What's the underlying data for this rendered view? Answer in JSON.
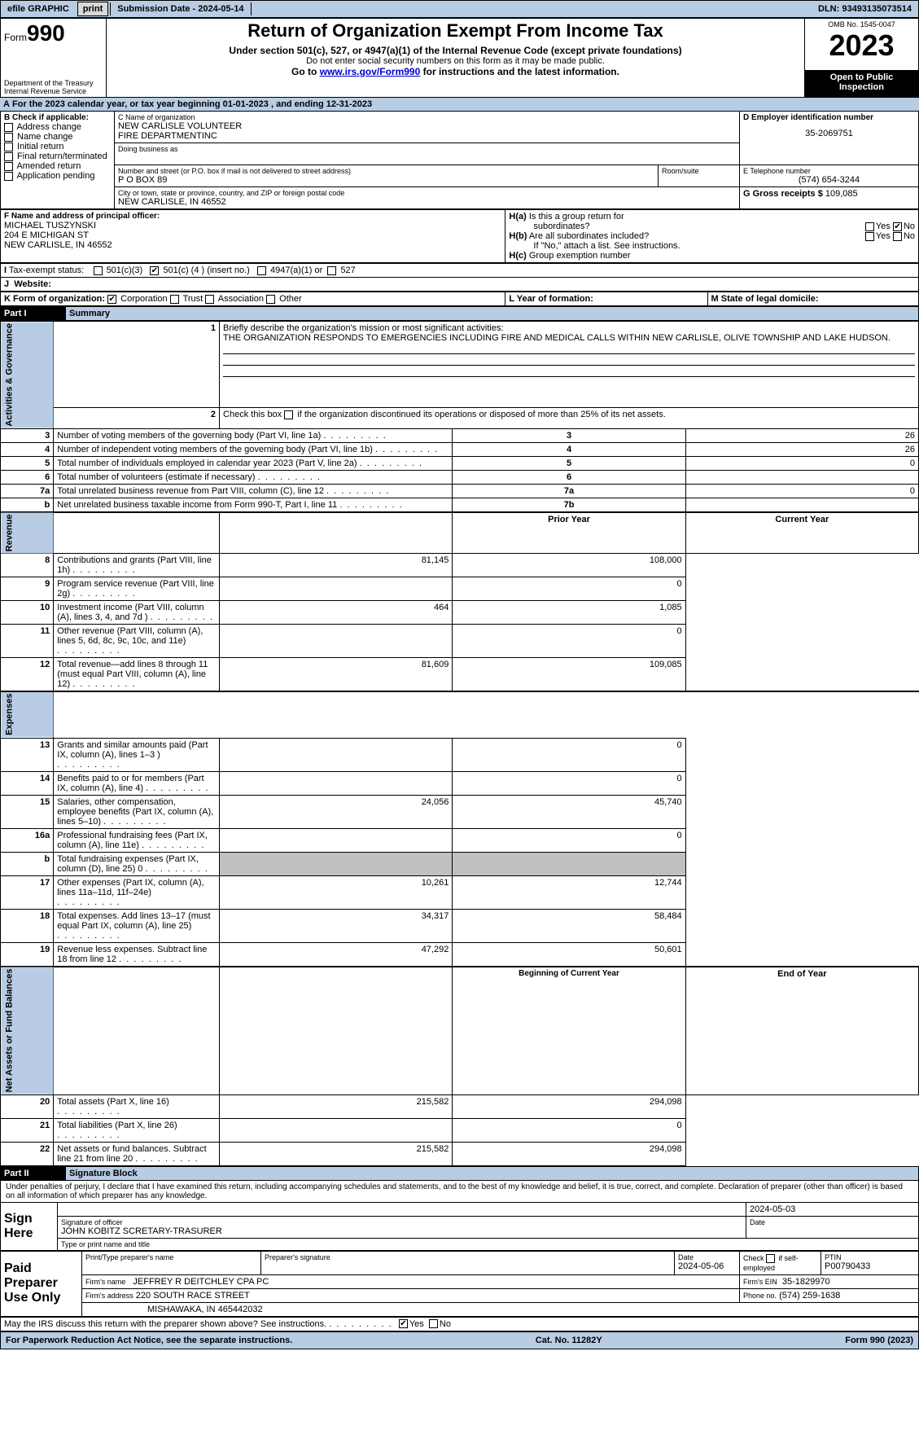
{
  "topbar": {
    "efile": "efile GRAPHIC",
    "print": "print",
    "submission_label": "Submission Date - ",
    "submission_date": "2024-05-14",
    "dln_label": "DLN: ",
    "dln": "93493135073514"
  },
  "header": {
    "form_word": "Form",
    "form_no": "990",
    "dept1": "Department of the Treasury",
    "dept2": "Internal Revenue Service",
    "title": "Return of Organization Exempt From Income Tax",
    "sub1": "Under section 501(c), 527, or 4947(a)(1) of the Internal Revenue Code (except private foundations)",
    "sub2": "Do not enter social security numbers on this form as it may be made public.",
    "sub3_pre": "Go to ",
    "sub3_link": "www.irs.gov/Form990",
    "sub3_post": " for instructions and the latest information.",
    "omb": "OMB No. 1545-0047",
    "year": "2023",
    "inspection": "Open to Public Inspection"
  },
  "A": {
    "text": "For the 2023 calendar year, or tax year beginning ",
    "begin": "01-01-2023",
    "mid": " , and ending ",
    "end": "12-31-2023"
  },
  "B": {
    "label": "B Check if applicable:",
    "opts": [
      "Address change",
      "Name change",
      "Initial return",
      "Final return/terminated",
      "Amended return",
      "Application pending"
    ]
  },
  "C": {
    "name_lbl": "C Name of organization",
    "name1": "NEW CARLISLE VOLUNTEER",
    "name2": "FIRE DEPARTMENTINC",
    "dba_lbl": "Doing business as",
    "street_lbl": "Number and street (or P.O. box if mail is not delivered to street address)",
    "room_lbl": "Room/suite",
    "street": "P O BOX 89",
    "city_lbl": "City or town, state or province, country, and ZIP or foreign postal code",
    "city": "NEW CARLISLE, IN  46552"
  },
  "D": {
    "lbl": "D Employer identification number",
    "val": "35-2069751"
  },
  "E": {
    "lbl": "E Telephone number",
    "val": "(574) 654-3244"
  },
  "G": {
    "lbl": "G Gross receipts $ ",
    "val": "109,085"
  },
  "F": {
    "lbl": "F  Name and address of principal officer:",
    "l1": "MICHAEL TUSZYNSKI",
    "l2": "204 E MICHIGAN ST",
    "l3": "NEW CARLISLE, IN  46552"
  },
  "H": {
    "a": "Is this a group return for",
    "a2": "subordinates?",
    "b": "Are all subordinates included?",
    "b_note": "If \"No,\" attach a list. See instructions.",
    "c": "Group exemption number",
    "yes": "Yes",
    "no": "No"
  },
  "I": {
    "lbl": "Tax-exempt status:",
    "o1": "501(c)(3)",
    "o2a": "501(c) (",
    "o2b": "4",
    "o2c": " ) (insert no.)",
    "o3": "4947(a)(1) or",
    "o4": "527"
  },
  "J": {
    "lbl": "Website:"
  },
  "K": {
    "lbl": "K Form of organization:",
    "o1": "Corporation",
    "o2": "Trust",
    "o3": "Association",
    "o4": "Other"
  },
  "L": {
    "lbl": "L Year of formation:"
  },
  "M": {
    "lbl": "M State of legal domicile:"
  },
  "part1": {
    "hdr": "Part I",
    "title": "Summary",
    "l1a": "Briefly describe the organization's mission or most significant activities:",
    "l1b": "THE ORGANIZATION RESPONDS TO EMERGENCIES INCLUDING FIRE AND MEDICAL CALLS WITHIN NEW CARLISLE, OLIVE TOWNSHIP AND LAKE HUDSON.",
    "l2": "Check this box      if the organization discontinued its operations or disposed of more than 25% of its net assets.",
    "lines": [
      {
        "n": "3",
        "t": "Number of voting members of the governing body (Part VI, line 1a)",
        "box": "3",
        "v": "26"
      },
      {
        "n": "4",
        "t": "Number of independent voting members of the governing body (Part VI, line 1b)",
        "box": "4",
        "v": "26"
      },
      {
        "n": "5",
        "t": "Total number of individuals employed in calendar year 2023 (Part V, line 2a)",
        "box": "5",
        "v": "0"
      },
      {
        "n": "6",
        "t": "Total number of volunteers (estimate if necessary)",
        "box": "6",
        "v": ""
      },
      {
        "n": "7a",
        "t": "Total unrelated business revenue from Part VIII, column (C), line 12",
        "box": "7a",
        "v": "0"
      },
      {
        "n": "b",
        "t": "Net unrelated business taxable income from Form 990-T, Part I, line 11",
        "box": "7b",
        "v": ""
      }
    ],
    "prior_hdr": "Prior Year",
    "curr_hdr": "Current Year",
    "rev": [
      {
        "n": "8",
        "t": "Contributions and grants (Part VIII, line 1h)",
        "p": "81,145",
        "c": "108,000"
      },
      {
        "n": "9",
        "t": "Program service revenue (Part VIII, line 2g)",
        "p": "",
        "c": "0"
      },
      {
        "n": "10",
        "t": "Investment income (Part VIII, column (A), lines 3, 4, and 7d )",
        "p": "464",
        "c": "1,085"
      },
      {
        "n": "11",
        "t": "Other revenue (Part VIII, column (A), lines 5, 6d, 8c, 9c, 10c, and 11e)",
        "p": "",
        "c": "0"
      },
      {
        "n": "12",
        "t": "Total revenue—add lines 8 through 11 (must equal Part VIII, column (A), line 12)",
        "p": "81,609",
        "c": "109,085"
      }
    ],
    "exp": [
      {
        "n": "13",
        "t": "Grants and similar amounts paid (Part IX, column (A), lines 1–3 )",
        "p": "",
        "c": "0"
      },
      {
        "n": "14",
        "t": "Benefits paid to or for members (Part IX, column (A), line 4)",
        "p": "",
        "c": "0"
      },
      {
        "n": "15",
        "t": "Salaries, other compensation, employee benefits (Part IX, column (A), lines 5–10)",
        "p": "24,056",
        "c": "45,740"
      },
      {
        "n": "16a",
        "t": "Professional fundraising fees (Part IX, column (A), line 11e)",
        "p": "",
        "c": "0"
      },
      {
        "n": "b",
        "t": "Total fundraising expenses (Part IX, column (D), line 25) 0",
        "p": "GREY",
        "c": "GREY"
      },
      {
        "n": "17",
        "t": "Other expenses (Part IX, column (A), lines 11a–11d, 11f–24e)",
        "p": "10,261",
        "c": "12,744"
      },
      {
        "n": "18",
        "t": "Total expenses. Add lines 13–17 (must equal Part IX, column (A), line 25)",
        "p": "34,317",
        "c": "58,484"
      },
      {
        "n": "19",
        "t": "Revenue less expenses. Subtract line 18 from line 12",
        "p": "47,292",
        "c": "50,601"
      }
    ],
    "begin_hdr": "Beginning of Current Year",
    "end_hdr": "End of Year",
    "net": [
      {
        "n": "20",
        "t": "Total assets (Part X, line 16)",
        "p": "215,582",
        "c": "294,098"
      },
      {
        "n": "21",
        "t": "Total liabilities (Part X, line 26)",
        "p": "",
        "c": "0"
      },
      {
        "n": "22",
        "t": "Net assets or fund balances. Subtract line 21 from line 20",
        "p": "215,582",
        "c": "294,098"
      }
    ],
    "side": {
      "ag": "Activities & Governance",
      "rev": "Revenue",
      "exp": "Expenses",
      "net": "Net Assets or Fund Balances"
    }
  },
  "part2": {
    "hdr": "Part II",
    "title": "Signature Block",
    "decl": "Under penalties of perjury, I declare that I have examined this return, including accompanying schedules and statements, and to the best of my knowledge and belief, it is true, correct, and complete. Declaration of preparer (other than officer) is based on all information of which preparer has any knowledge.",
    "sign_here": "Sign Here",
    "sig_lbl": "Signature of officer",
    "date_lbl": "Date",
    "sig_date": "2024-05-03",
    "officer": "JOHN KOBITZ  SCRETARY-TRASURER",
    "type_lbl": "Type or print name and title",
    "paid": "Paid Preparer Use Only",
    "p_name_lbl": "Print/Type preparer's name",
    "p_sig_lbl": "Preparer's signature",
    "p_date_lbl": "Date",
    "p_date": "2024-05-06",
    "p_check_lbl": "Check        if self-employed",
    "ptin_lbl": "PTIN",
    "ptin": "P00790433",
    "firm_lbl": "Firm's name",
    "firm": "JEFFREY R DEITCHLEY CPA PC",
    "ein_lbl": "Firm's EIN",
    "ein": "35-1829970",
    "addr_lbl": "Firm's address",
    "addr1": "220 SOUTH RACE STREET",
    "addr2": "MISHAWAKA, IN  465442032",
    "phone_lbl": "Phone no.",
    "phone": "(574) 259-1638",
    "discuss": "May the IRS discuss this return with the preparer shown above? See instructions."
  },
  "footer": {
    "l": "For Paperwork Reduction Act Notice, see the separate instructions.",
    "m": "Cat. No. 11282Y",
    "r": "Form 990 (2023)"
  }
}
